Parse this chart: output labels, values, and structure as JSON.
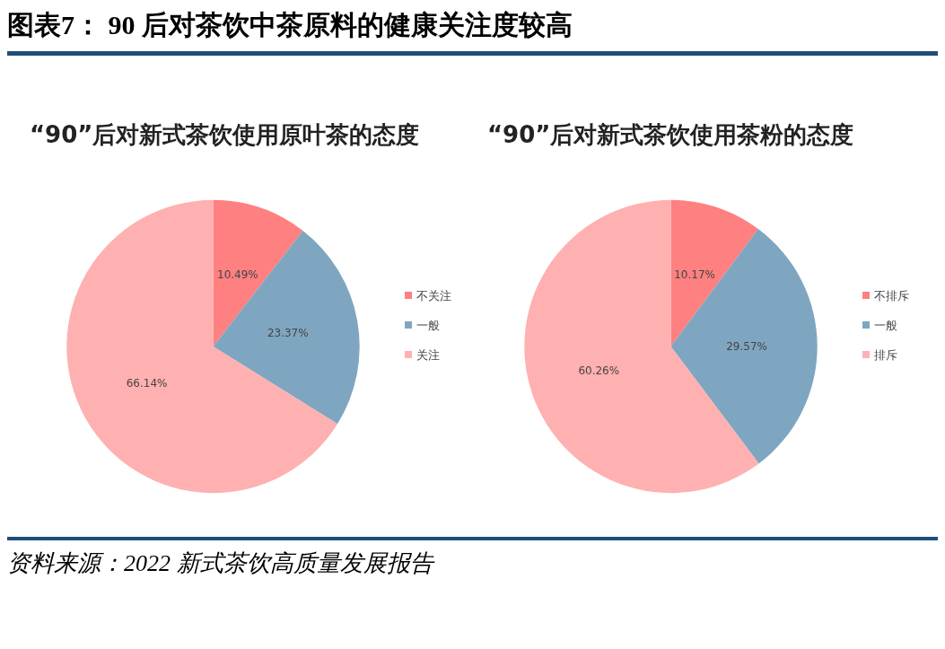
{
  "chart_data": [
    {
      "type": "pie",
      "title": "“90”后对新式茶饮使用原叶茶的态度",
      "categories": [
        "不关注",
        "一般",
        "关注"
      ],
      "values": [
        10.49,
        23.37,
        66.14
      ],
      "value_labels": [
        "10.49%",
        "23.37%",
        "66.14%"
      ],
      "colors": [
        "#fe8080",
        "#7fa6c0",
        "#ffb0b0"
      ],
      "legend": "right",
      "annotations": [
        "图表7：  90 后对茶饮中茶原料的健康关注度较高"
      ]
    },
    {
      "type": "pie",
      "title": "“90”后对新式茶饮使用茶粉的态度",
      "categories": [
        "不排斥",
        "一般",
        "排斥"
      ],
      "values": [
        10.17,
        29.57,
        60.26
      ],
      "value_labels": [
        "10.17%",
        "29.57%",
        "60.26%"
      ],
      "colors": [
        "#fe8080",
        "#7fa6c0",
        "#ffb0b0"
      ],
      "legend": "right",
      "annotations": [
        "资料来源：2022 新式茶饮高质量发展报告"
      ]
    }
  ]
}
